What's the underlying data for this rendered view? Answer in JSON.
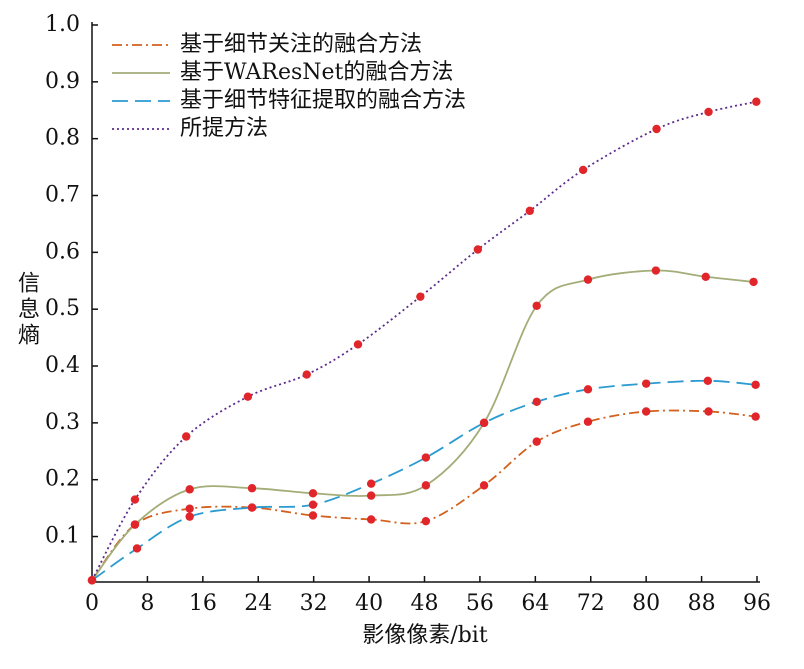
{
  "chart_data": {
    "type": "line",
    "x_label": "影像像素/bit",
    "y_label": "信息熵",
    "xlim": [
      0,
      96
    ],
    "xticks": [
      0,
      8,
      16,
      24,
      32,
      40,
      48,
      56,
      64,
      72,
      80,
      88,
      96
    ],
    "ylim": [
      0.02,
      1.0
    ],
    "yticks": [
      0.1,
      0.2,
      0.3,
      0.4,
      0.5,
      0.6,
      0.7,
      0.8,
      0.9,
      {
        "value": 1.0,
        "label": "1.0"
      }
    ],
    "marker_color": "#e0262a",
    "series": [
      {
        "name": "基于细节关注的融合方法",
        "color": "#d2601e",
        "dash": "10 4 2 4",
        "x": [
          0,
          6.2,
          14.1,
          23.1,
          31.9,
          40.3,
          48.2,
          56.6,
          64.2,
          71.6,
          80,
          89,
          95.8
        ],
        "values": [
          0.023,
          0.121,
          0.149,
          0.151,
          0.137,
          0.13,
          0.127,
          0.19,
          0.267,
          0.302,
          0.32,
          0.32,
          0.311
        ]
      },
      {
        "name": "基于WAResNet的融合方法",
        "color": "#a3ad78",
        "dash": "",
        "x": [
          0,
          6.2,
          14.1,
          23.1,
          31.9,
          40.3,
          48.2,
          56.6,
          64.2,
          71.6,
          81.4,
          88.6,
          95.5
        ],
        "values": [
          0.023,
          0.121,
          0.183,
          0.185,
          0.176,
          0.172,
          0.19,
          0.3,
          0.506,
          0.552,
          0.568,
          0.557,
          0.548
        ]
      },
      {
        "name": "基于细节特征提取的融合方法",
        "color": "#2b9bd0",
        "dash": "16 7",
        "x": [
          0,
          6.5,
          14.1,
          23.1,
          31.9,
          40.3,
          48.2,
          56.6,
          64.2,
          71.6,
          80,
          88.9,
          95.8
        ],
        "values": [
          0.023,
          0.079,
          0.135,
          0.151,
          0.156,
          0.193,
          0.239,
          0.3,
          0.337,
          0.359,
          0.369,
          0.374,
          0.367
        ]
      },
      {
        "name": "所提方法",
        "color": "#5b2a8c",
        "dash": "2 3",
        "x": [
          0,
          6.2,
          13.6,
          22.5,
          31,
          38.4,
          47.4,
          55.7,
          63.2,
          70.9,
          81.5,
          89,
          95.9
        ],
        "values": [
          0.023,
          0.165,
          0.276,
          0.346,
          0.385,
          0.438,
          0.522,
          0.605,
          0.673,
          0.745,
          0.817,
          0.847,
          0.865
        ]
      }
    ]
  }
}
